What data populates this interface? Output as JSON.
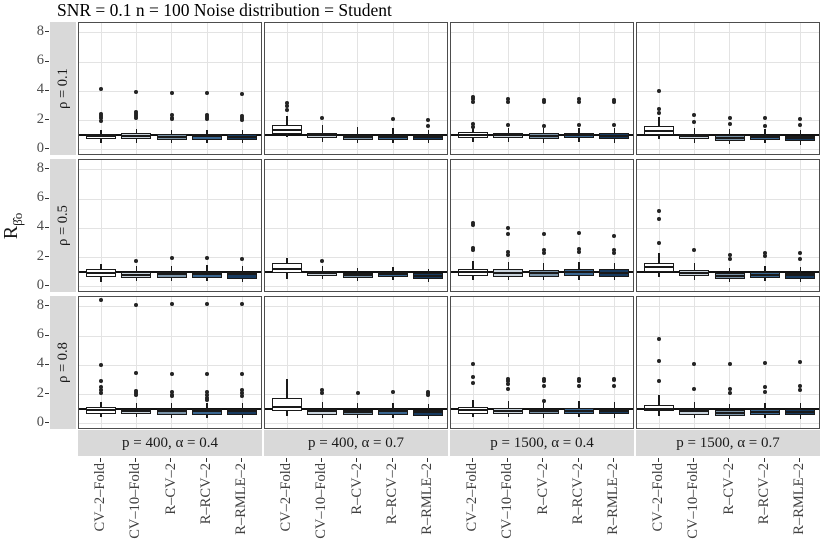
{
  "chart_data": {
    "type": "boxplot",
    "title": "SNR = 0.1 n = 100 Noise distribution = Student",
    "ylabel": {
      "main": "R",
      "hat": "^",
      "sub": "β̂o"
    },
    "y_ticks": [
      0,
      2,
      4,
      6,
      8
    ],
    "ylim": [
      -0.42,
      8.68
    ],
    "reference_line_y": 1,
    "grid": "major-on",
    "legend": "none",
    "categories": [
      "CV–2–Fold",
      "CV–10–Fold",
      "R–CV–2",
      "R–RCV–2",
      "R–RMLE–2"
    ],
    "box_fill_colors": [
      "#FFFFFF",
      "#C9D3DC",
      "#7A93A8",
      "#3A6690",
      "#173A5F"
    ],
    "box_border_color": "#1A1A1A",
    "strip_bg": "#D9D9D9",
    "grid_color": "#E3E3E3",
    "row_facets": [
      "ρ = 0.1",
      "ρ = 0.5",
      "ρ = 0.8"
    ],
    "col_facets": [
      "p = 400, α = 0.4",
      "p = 400, α = 0.7",
      "p = 1500, α = 0.4",
      "p = 1500, α = 0.7"
    ],
    "panels": [
      {
        "row": 0,
        "col": 0,
        "boxes": [
          {
            "lo": 0.5,
            "q1": 0.72,
            "med": 0.95,
            "q3": 1.1,
            "hi": 1.35,
            "out": [
              2.0,
              2.15,
              2.3,
              2.45,
              4.15
            ]
          },
          {
            "lo": 0.5,
            "q1": 0.72,
            "med": 0.95,
            "q3": 1.12,
            "hi": 1.4,
            "out": [
              2.15,
              2.3,
              2.45,
              2.6,
              3.95
            ]
          },
          {
            "lo": 0.45,
            "q1": 0.68,
            "med": 0.9,
            "q3": 1.08,
            "hi": 1.35,
            "out": [
              2.1,
              2.2,
              2.4,
              3.9
            ]
          },
          {
            "lo": 0.45,
            "q1": 0.7,
            "med": 0.92,
            "q3": 1.1,
            "hi": 1.38,
            "out": [
              2.1,
              2.25,
              2.4,
              3.9
            ]
          },
          {
            "lo": 0.45,
            "q1": 0.68,
            "med": 0.9,
            "q3": 1.08,
            "hi": 1.35,
            "out": [
              2.05,
              2.2,
              2.35,
              3.85
            ]
          }
        ]
      },
      {
        "row": 0,
        "col": 1,
        "boxes": [
          {
            "lo": 0.85,
            "q1": 1.1,
            "med": 1.35,
            "q3": 1.68,
            "hi": 2.35,
            "out": [
              2.7,
              3.0,
              3.2
            ]
          },
          {
            "lo": 0.55,
            "q1": 0.8,
            "med": 1.0,
            "q3": 1.15,
            "hi": 1.7,
            "out": [
              2.2
            ]
          },
          {
            "lo": 0.45,
            "q1": 0.65,
            "med": 0.85,
            "q3": 1.0,
            "hi": 1.55,
            "out": []
          },
          {
            "lo": 0.5,
            "q1": 0.7,
            "med": 0.9,
            "q3": 1.05,
            "hi": 1.5,
            "out": [
              2.1
            ]
          },
          {
            "lo": 0.45,
            "q1": 0.65,
            "med": 0.85,
            "q3": 1.0,
            "hi": 1.35,
            "out": [
              1.6,
              2.05
            ]
          }
        ]
      },
      {
        "row": 0,
        "col": 2,
        "boxes": [
          {
            "lo": 0.55,
            "q1": 0.8,
            "med": 1.02,
            "q3": 1.2,
            "hi": 1.55,
            "out": [
              1.55,
              1.75,
              3.3,
              3.5,
              3.6
            ]
          },
          {
            "lo": 0.55,
            "q1": 0.78,
            "med": 1.0,
            "q3": 1.18,
            "hi": 1.5,
            "out": [
              1.7,
              3.3,
              3.45
            ]
          },
          {
            "lo": 0.5,
            "q1": 0.75,
            "med": 0.98,
            "q3": 1.15,
            "hi": 1.5,
            "out": [
              1.65,
              3.25,
              3.4
            ]
          },
          {
            "lo": 0.55,
            "q1": 0.78,
            "med": 1.0,
            "q3": 1.18,
            "hi": 1.52,
            "out": [
              1.7,
              3.3,
              3.5
            ]
          },
          {
            "lo": 0.5,
            "q1": 0.75,
            "med": 0.98,
            "q3": 1.15,
            "hi": 1.48,
            "out": [
              1.7,
              3.25,
              3.4
            ]
          }
        ]
      },
      {
        "row": 0,
        "col": 3,
        "boxes": [
          {
            "lo": 0.75,
            "q1": 1.05,
            "med": 1.3,
            "q3": 1.62,
            "hi": 2.25,
            "out": [
              2.55,
              2.8,
              4.0
            ]
          },
          {
            "lo": 0.5,
            "q1": 0.72,
            "med": 0.92,
            "q3": 1.1,
            "hi": 1.5,
            "out": [
              1.9,
              2.4
            ]
          },
          {
            "lo": 0.4,
            "q1": 0.6,
            "med": 0.8,
            "q3": 1.0,
            "hi": 1.42,
            "out": [
              1.8,
              2.2
            ]
          },
          {
            "lo": 0.45,
            "q1": 0.65,
            "med": 0.88,
            "q3": 1.05,
            "hi": 1.45,
            "out": [
              1.6,
              2.2
            ]
          },
          {
            "lo": 0.35,
            "q1": 0.58,
            "med": 0.8,
            "q3": 0.97,
            "hi": 1.35,
            "out": [
              1.7,
              2.1
            ]
          }
        ]
      },
      {
        "row": 1,
        "col": 0,
        "boxes": [
          {
            "lo": 0.35,
            "q1": 0.65,
            "med": 0.95,
            "q3": 1.2,
            "hi": 1.55,
            "out": []
          },
          {
            "lo": 0.4,
            "q1": 0.6,
            "med": 0.8,
            "q3": 1.0,
            "hi": 1.4,
            "out": [
              1.8
            ]
          },
          {
            "lo": 0.4,
            "q1": 0.6,
            "med": 0.85,
            "q3": 1.0,
            "hi": 1.45,
            "out": [
              2.0
            ]
          },
          {
            "lo": 0.4,
            "q1": 0.6,
            "med": 0.85,
            "q3": 1.05,
            "hi": 1.5,
            "out": [
              2.0
            ]
          },
          {
            "lo": 0.35,
            "q1": 0.55,
            "med": 0.85,
            "q3": 1.05,
            "hi": 1.45,
            "out": [
              1.9
            ]
          }
        ]
      },
      {
        "row": 1,
        "col": 1,
        "boxes": [
          {
            "lo": 0.55,
            "q1": 0.95,
            "med": 1.25,
            "q3": 1.6,
            "hi": 2.0,
            "out": []
          },
          {
            "lo": 0.55,
            "q1": 0.75,
            "med": 0.95,
            "q3": 1.1,
            "hi": 1.45,
            "out": [
              1.75
            ]
          },
          {
            "lo": 0.4,
            "q1": 0.6,
            "med": 0.8,
            "q3": 0.95,
            "hi": 1.3,
            "out": []
          },
          {
            "lo": 0.45,
            "q1": 0.65,
            "med": 0.85,
            "q3": 1.0,
            "hi": 1.35,
            "out": []
          },
          {
            "lo": 0.35,
            "q1": 0.55,
            "med": 0.75,
            "q3": 0.92,
            "hi": 1.25,
            "out": []
          }
        ]
      },
      {
        "row": 1,
        "col": 2,
        "boxes": [
          {
            "lo": 0.5,
            "q1": 0.75,
            "med": 1.0,
            "q3": 1.25,
            "hi": 1.8,
            "out": [
              2.5,
              2.65,
              4.2,
              4.35
            ]
          },
          {
            "lo": 0.45,
            "q1": 0.7,
            "med": 0.95,
            "q3": 1.2,
            "hi": 1.7,
            "out": [
              2.2,
              2.4,
              3.6,
              4.0
            ]
          },
          {
            "lo": 0.45,
            "q1": 0.7,
            "med": 0.95,
            "q3": 1.15,
            "hi": 1.65,
            "out": [
              2.3,
              2.5,
              3.6
            ]
          },
          {
            "lo": 0.5,
            "q1": 0.75,
            "med": 1.0,
            "q3": 1.2,
            "hi": 1.7,
            "out": [
              2.4,
              2.6,
              3.7
            ]
          },
          {
            "lo": 0.45,
            "q1": 0.7,
            "med": 0.95,
            "q3": 1.2,
            "hi": 1.65,
            "out": [
              2.3,
              2.5,
              3.5
            ]
          }
        ]
      },
      {
        "row": 1,
        "col": 3,
        "boxes": [
          {
            "lo": 0.7,
            "q1": 1.05,
            "med": 1.35,
            "q3": 1.65,
            "hi": 2.3,
            "out": [
              3.0,
              4.65,
              5.2
            ]
          },
          {
            "lo": 0.5,
            "q1": 0.75,
            "med": 0.95,
            "q3": 1.15,
            "hi": 1.6,
            "out": [
              2.5
            ]
          },
          {
            "lo": 0.35,
            "q1": 0.55,
            "med": 0.75,
            "q3": 0.95,
            "hi": 1.3,
            "out": [
              1.9,
              2.2
            ]
          },
          {
            "lo": 0.4,
            "q1": 0.6,
            "med": 0.8,
            "q3": 1.0,
            "hi": 1.4,
            "out": [
              2.1,
              2.3
            ]
          },
          {
            "lo": 0.35,
            "q1": 0.55,
            "med": 0.8,
            "q3": 0.97,
            "hi": 1.35,
            "out": [
              1.9,
              2.3
            ]
          }
        ]
      },
      {
        "row": 2,
        "col": 0,
        "boxes": [
          {
            "lo": 0.45,
            "q1": 0.7,
            "med": 0.95,
            "q3": 1.12,
            "hi": 1.5,
            "out": [
              2.1,
              2.3,
              2.5,
              2.9,
              4.0,
              8.5
            ]
          },
          {
            "lo": 0.45,
            "q1": 0.65,
            "med": 0.9,
            "q3": 1.05,
            "hi": 1.45,
            "out": [
              2.0,
              2.1,
              2.25,
              3.5,
              8.1
            ]
          },
          {
            "lo": 0.4,
            "q1": 0.6,
            "med": 0.85,
            "q3": 1.0,
            "hi": 1.4,
            "out": [
              1.9,
              2.0,
              2.15,
              3.4,
              8.2
            ]
          },
          {
            "lo": 0.4,
            "q1": 0.6,
            "med": 0.85,
            "q3": 1.05,
            "hi": 1.45,
            "out": [
              1.6,
              1.8,
              2.0,
              2.2,
              3.4,
              8.2
            ]
          },
          {
            "lo": 0.4,
            "q1": 0.6,
            "med": 0.85,
            "q3": 1.0,
            "hi": 1.4,
            "out": [
              1.9,
              2.1,
              2.3,
              3.4,
              8.2
            ]
          }
        ]
      },
      {
        "row": 2,
        "col": 1,
        "boxes": [
          {
            "lo": 0.55,
            "q1": 0.9,
            "med": 1.15,
            "q3": 1.75,
            "hi": 3.05,
            "out": []
          },
          {
            "lo": 0.4,
            "q1": 0.6,
            "med": 0.85,
            "q3": 1.05,
            "hi": 1.5,
            "out": [
              2.1,
              2.3
            ]
          },
          {
            "lo": 0.4,
            "q1": 0.6,
            "med": 0.8,
            "q3": 0.95,
            "hi": 1.4,
            "out": [
              2.1
            ]
          },
          {
            "lo": 0.4,
            "q1": 0.6,
            "med": 0.85,
            "q3": 1.0,
            "hi": 1.45,
            "out": [
              2.15
            ]
          },
          {
            "lo": 0.35,
            "q1": 0.55,
            "med": 0.8,
            "q3": 0.95,
            "hi": 1.35,
            "out": [
              1.95,
              2.1,
              2.2
            ]
          }
        ]
      },
      {
        "row": 2,
        "col": 2,
        "boxes": [
          {
            "lo": 0.45,
            "q1": 0.7,
            "med": 0.95,
            "q3": 1.18,
            "hi": 1.65,
            "out": [
              2.8,
              3.2,
              4.1
            ]
          },
          {
            "lo": 0.45,
            "q1": 0.7,
            "med": 0.9,
            "q3": 1.1,
            "hi": 1.55,
            "out": [
              2.4,
              2.75,
              2.95,
              3.1
            ]
          },
          {
            "lo": 0.4,
            "q1": 0.65,
            "med": 0.88,
            "q3": 1.05,
            "hi": 1.5,
            "out": [
              1.55,
              2.6,
              2.95,
              3.1
            ]
          },
          {
            "lo": 0.45,
            "q1": 0.68,
            "med": 0.9,
            "q3": 1.1,
            "hi": 1.55,
            "out": [
              2.6,
              2.95,
              3.1
            ]
          },
          {
            "lo": 0.4,
            "q1": 0.65,
            "med": 0.88,
            "q3": 1.05,
            "hi": 1.5,
            "out": [
              2.6,
              3.0,
              3.1
            ]
          }
        ]
      },
      {
        "row": 2,
        "col": 3,
        "boxes": [
          {
            "lo": 0.55,
            "q1": 0.85,
            "med": 1.05,
            "q3": 1.32,
            "hi": 1.95,
            "out": [
              2.9,
              4.3,
              5.8
            ]
          },
          {
            "lo": 0.4,
            "q1": 0.6,
            "med": 0.85,
            "q3": 1.05,
            "hi": 1.5,
            "out": [
              2.4,
              4.1
            ]
          },
          {
            "lo": 0.35,
            "q1": 0.55,
            "med": 0.75,
            "q3": 0.95,
            "hi": 1.35,
            "out": [
              2.1,
              2.4,
              4.1
            ]
          },
          {
            "lo": 0.4,
            "q1": 0.6,
            "med": 0.8,
            "q3": 1.0,
            "hi": 1.4,
            "out": [
              2.2,
              2.5,
              4.15
            ]
          },
          {
            "lo": 0.35,
            "q1": 0.58,
            "med": 0.8,
            "q3": 1.0,
            "hi": 1.4,
            "out": [
              2.3,
              2.6,
              4.2
            ]
          }
        ]
      }
    ]
  }
}
